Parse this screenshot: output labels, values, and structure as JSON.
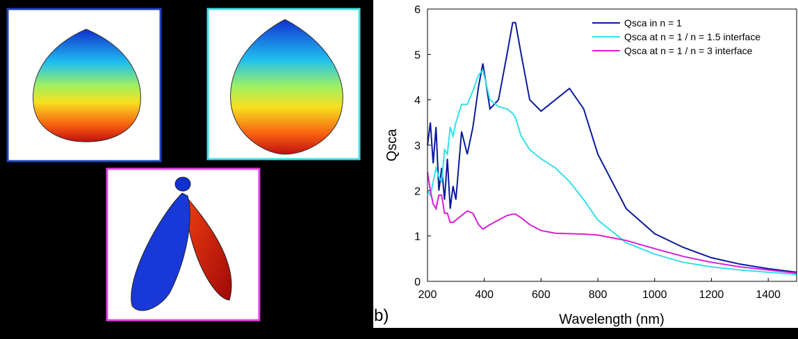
{
  "chart_data": {
    "type": "line",
    "panel_label": "b)",
    "xlabel": "Wavelength (nm)",
    "ylabel": "Qsca",
    "x": [
      200,
      210,
      220,
      230,
      240,
      250,
      260,
      270,
      280,
      290,
      300,
      320,
      340,
      360,
      380,
      395,
      420,
      450,
      480,
      500,
      510,
      530,
      560,
      600,
      650,
      700,
      750,
      800,
      900,
      1000,
      1100,
      1200,
      1300,
      1400,
      1500
    ],
    "series": [
      {
        "name": "Qsca in n = 1",
        "color": "#0a1a9a",
        "values": [
          3.0,
          3.5,
          2.6,
          3.4,
          2.0,
          2.5,
          1.8,
          2.7,
          1.6,
          2.1,
          1.8,
          3.3,
          2.8,
          3.4,
          4.3,
          4.8,
          3.8,
          4.0,
          5.0,
          5.7,
          5.7,
          5.0,
          4.0,
          3.75,
          4.0,
          4.25,
          3.8,
          2.8,
          1.6,
          1.05,
          0.75,
          0.52,
          0.38,
          0.28,
          0.2
        ]
      },
      {
        "name": "Qsca at n = 1 / n = 1.5 interface",
        "color": "#33e0e8",
        "values": [
          2.0,
          1.9,
          2.2,
          2.5,
          2.3,
          2.2,
          2.9,
          2.8,
          3.4,
          3.2,
          3.5,
          3.9,
          3.9,
          4.2,
          4.55,
          4.65,
          4.0,
          3.85,
          3.8,
          3.7,
          3.6,
          3.2,
          2.9,
          2.7,
          2.5,
          2.2,
          1.8,
          1.35,
          0.85,
          0.6,
          0.42,
          0.32,
          0.25,
          0.2,
          0.15
        ]
      },
      {
        "name": "Qsca at n = 1 / n = 3 interface",
        "color": "#d81ed8",
        "values": [
          2.4,
          2.0,
          1.7,
          1.6,
          1.9,
          1.9,
          1.5,
          1.5,
          1.3,
          1.3,
          1.35,
          1.45,
          1.55,
          1.5,
          1.25,
          1.15,
          1.25,
          1.35,
          1.45,
          1.48,
          1.48,
          1.4,
          1.25,
          1.12,
          1.06,
          1.05,
          1.04,
          1.02,
          0.9,
          0.72,
          0.55,
          0.42,
          0.32,
          0.25,
          0.18
        ]
      }
    ],
    "xlim": [
      200,
      1500
    ],
    "xticks": [
      200,
      400,
      600,
      800,
      1000,
      1200,
      1400
    ],
    "ylim": [
      0,
      6
    ],
    "yticks": [
      0,
      1,
      2,
      3,
      4,
      5,
      6
    ],
    "legend": "upper right",
    "grid": false
  }
}
